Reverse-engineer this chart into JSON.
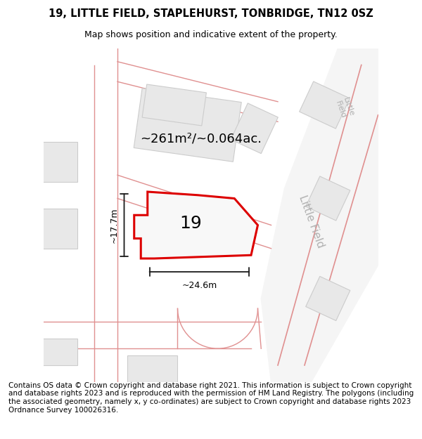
{
  "title_line1": "19, LITTLE FIELD, STAPLEHURST, TONBRIDGE, TN12 0SZ",
  "title_line2": "Map shows position and indicative extent of the property.",
  "footer_text": "Contains OS data © Crown copyright and database right 2021. This information is subject to Crown copyright and database rights 2023 and is reproduced with the permission of HM Land Registry. The polygons (including the associated geometry, namely x, y co-ordinates) are subject to Crown copyright and database rights 2023 Ordnance Survey 100026316.",
  "area_label": "~261m²/~0.064ac.",
  "number_label": "19",
  "width_label": "~24.6m",
  "height_label": "~17.7m",
  "bg_color": "#f5f5f5",
  "map_bg": "#ffffff",
  "building_fill": "#e8e8e8",
  "building_stroke": "#cccccc",
  "road_fill": "#f0f0f0",
  "road_stroke": "#e8a0a0",
  "highlight_stroke": "#dd0000",
  "highlight_fill": "#f5f5f5",
  "road_label_color": "#b0b0b0",
  "dim_line_color": "#1a1a1a",
  "title_fontsize": 10.5,
  "subtitle_fontsize": 9,
  "label_fontsize": 13,
  "number_fontsize": 18,
  "road_label_fontsize": 11,
  "footer_fontsize": 7.5
}
